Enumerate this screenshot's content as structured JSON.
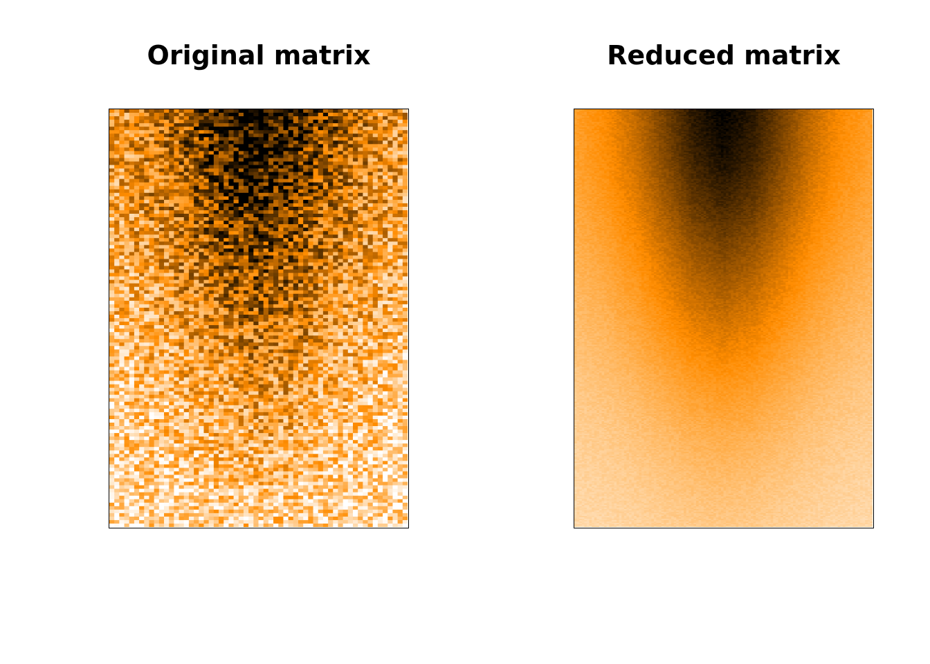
{
  "chart_data": [
    {
      "type": "heatmap",
      "title": "Original matrix",
      "xlabel": "",
      "ylabel": "",
      "axes_visible": false,
      "grid": false,
      "legend": "none",
      "color_scale": [
        "#ffffff",
        "#ff8c00",
        "#000000"
      ],
      "value_range": [
        0,
        1
      ],
      "description_of_pattern": "noisy signal concentrated in central column, strongest at top rows, fading toward bottom",
      "row_profile_peak": [
        1.0,
        0.95,
        0.85,
        0.72,
        0.6,
        0.48,
        0.36,
        0.26,
        0.18,
        0.12
      ],
      "column_profile": [
        0.25,
        0.35,
        0.5,
        0.7,
        0.9,
        1.0,
        0.9,
        0.7,
        0.5,
        0.35,
        0.25
      ],
      "rows": 120,
      "columns": 60,
      "noise": "high"
    },
    {
      "type": "heatmap",
      "title": "Reduced matrix",
      "xlabel": "",
      "ylabel": "",
      "axes_visible": false,
      "grid": false,
      "legend": "none",
      "color_scale": [
        "#ffffff",
        "#ff8c00",
        "#000000"
      ],
      "value_range": [
        0,
        1
      ],
      "description_of_pattern": "smoothed signal concentrated in central column, strongest at top rows, fading toward bottom",
      "row_profile_peak": [
        1.0,
        0.95,
        0.85,
        0.72,
        0.6,
        0.48,
        0.36,
        0.26,
        0.18,
        0.12
      ],
      "column_profile": [
        0.25,
        0.35,
        0.5,
        0.7,
        0.9,
        1.0,
        0.9,
        0.7,
        0.5,
        0.35,
        0.25
      ],
      "rows": 300,
      "columns": 120,
      "noise": "low"
    }
  ]
}
